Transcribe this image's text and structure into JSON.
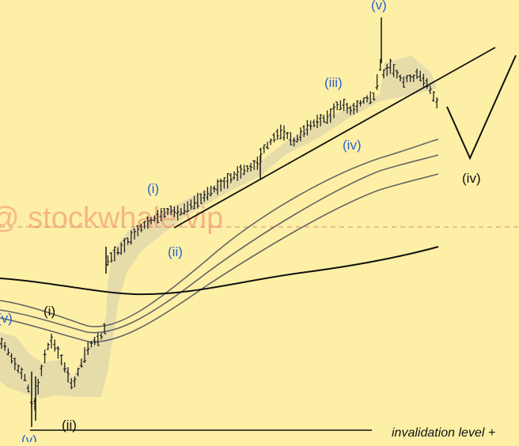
{
  "chart_data": {
    "type": "line",
    "title": "",
    "xlabel": "",
    "ylabel": "",
    "watermark": "@ stockwhale.vip",
    "colors": {
      "background": "#fdf0a6",
      "bars": "#222222",
      "channel_band": "#e6dcaa",
      "ma_short": "#666666",
      "ma_long": "#111111",
      "blue_labels": "#2a5fd0",
      "black_labels": "#111111",
      "watermark": "#f2a27a",
      "dashed_level": "#d98a80"
    },
    "wave_labels_blue": [
      "(v)",
      "(i)",
      "(ii)",
      "(iii)",
      "(iv)",
      "(v)"
    ],
    "wave_labels_black": [
      "(i)",
      "(ii)",
      "(iv)"
    ],
    "invalidation_text": "invalidation level +",
    "trendline": {
      "color": "#111111",
      "style": "solid"
    },
    "projection": {
      "label": "(iv)",
      "style": "solid"
    },
    "moving_averages": [
      {
        "name": "",
        "weight": "thin"
      },
      {
        "name": "",
        "weight": "thin"
      },
      {
        "name": "",
        "weight": "thin"
      },
      {
        "name": "",
        "weight": "thick"
      }
    ]
  }
}
